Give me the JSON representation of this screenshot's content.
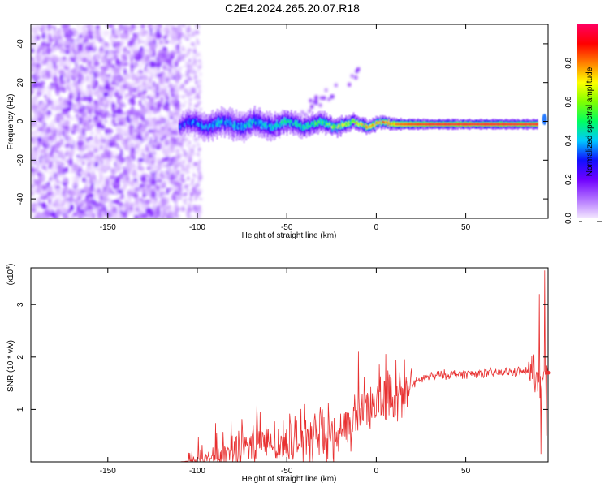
{
  "title": "C2E4.2024.265.20.07.R18",
  "chart_data": [
    {
      "type": "heatmap",
      "xlabel": "Height of straight line (km)",
      "ylabel": "Frequency (Hz)",
      "xlim": [
        -193,
        96
      ],
      "ylim": [
        -50,
        50
      ],
      "xticks": [
        -150,
        -100,
        -50,
        0,
        50
      ],
      "yticks": [
        -40,
        -20,
        0,
        20,
        40
      ],
      "colorbar": {
        "label": "Normalized spectral amplitude",
        "range": [
          0.0,
          1.0
        ],
        "ticks": [
          "0.0",
          "0.2",
          "0.4",
          "0.6",
          "0.8"
        ],
        "colors": [
          "#f4e8ff",
          "#b070ff",
          "#7000ff",
          "#1010ff",
          "#00c8ff",
          "#00ff60",
          "#80ff00",
          "#ffff00",
          "#ff8000",
          "#ff0000",
          "#ff0060"
        ]
      },
      "features": {
        "noise_region_x": [
          -193,
          -110
        ],
        "band_center_frequency": -1.5,
        "band_profile": [
          {
            "x": -110,
            "half_width": 6,
            "amp": 0.3
          },
          {
            "x": -90,
            "half_width": 7,
            "amp": 0.38
          },
          {
            "x": -70,
            "half_width": 7,
            "amp": 0.4
          },
          {
            "x": -50,
            "half_width": 6,
            "amp": 0.42
          },
          {
            "x": -30,
            "half_width": 5,
            "amp": 0.5
          },
          {
            "x": -10,
            "half_width": 3.5,
            "amp": 0.7
          },
          {
            "x": 10,
            "half_width": 3,
            "amp": 0.85
          },
          {
            "x": 30,
            "half_width": 2.5,
            "amp": 0.97
          },
          {
            "x": 90,
            "half_width": 2.5,
            "amp": 0.97
          }
        ]
      }
    },
    {
      "type": "line",
      "xlabel": "Height of straight line (km)",
      "ylabel": "SNR (10 * v/v)",
      "multiplier": "(x10",
      "multiplier_exp": "4",
      "xlim": [
        -193,
        96
      ],
      "ylim": [
        0,
        3.7
      ],
      "xticks": [
        -150,
        -100,
        -50,
        0,
        50
      ],
      "yticks": [
        1,
        2,
        3
      ],
      "color": "#e83030",
      "series": [
        {
          "points": [
            [
              -193,
              0.0
            ],
            [
              -150,
              0.0
            ],
            [
              -120,
              0.0
            ],
            [
              -110,
              0.0
            ],
            [
              -100,
              0.03
            ],
            [
              -90,
              0.1
            ],
            [
              -80,
              0.18
            ],
            [
              -70,
              0.25
            ],
            [
              -60,
              0.3
            ],
            [
              -50,
              0.35
            ],
            [
              -40,
              0.4
            ],
            [
              -30,
              0.45
            ],
            [
              -20,
              0.5
            ],
            [
              -15,
              0.55
            ],
            [
              -12,
              0.8
            ],
            [
              -10,
              0.9
            ],
            [
              -5,
              0.95
            ],
            [
              0,
              1.05
            ],
            [
              5,
              1.15
            ],
            [
              10,
              1.2
            ],
            [
              15,
              1.3
            ],
            [
              20,
              1.45
            ],
            [
              25,
              1.58
            ],
            [
              30,
              1.63
            ],
            [
              40,
              1.67
            ],
            [
              50,
              1.68
            ],
            [
              60,
              1.69
            ],
            [
              70,
              1.7
            ],
            [
              80,
              1.72
            ],
            [
              88,
              1.72
            ],
            [
              92,
              1.4
            ],
            [
              96,
              1.7
            ]
          ],
          "spikes": [
            [
              -10,
              2.1
            ],
            [
              -65,
              0.95
            ],
            [
              -40,
              1.1
            ],
            [
              -30,
              1.0
            ],
            [
              8,
              1.6
            ],
            [
              88,
              2.05
            ],
            [
              91,
              3.2
            ],
            [
              92,
              0.15
            ],
            [
              94,
              3.65
            ],
            [
              95,
              0.5
            ]
          ]
        }
      ]
    }
  ]
}
